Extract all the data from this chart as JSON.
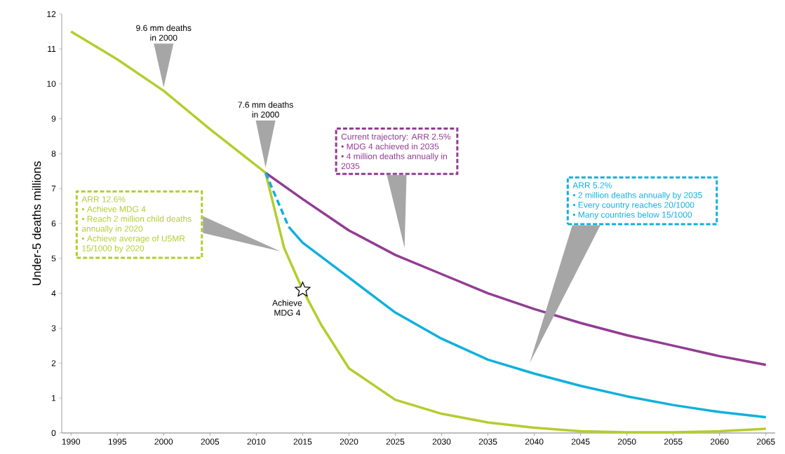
{
  "chart_data": {
    "type": "line",
    "ylabel": "Under-5 deaths millions",
    "xlim": [
      1989,
      2066
    ],
    "ylim": [
      0,
      12
    ],
    "xticks": [
      1990,
      1995,
      2000,
      2005,
      2010,
      2015,
      2020,
      2025,
      2030,
      2035,
      2040,
      2045,
      2050,
      2055,
      2060,
      2065
    ],
    "yticks": [
      0,
      1,
      2,
      3,
      4,
      5,
      6,
      7,
      8,
      9,
      10,
      11,
      12
    ],
    "grid": false,
    "series": [
      {
        "color": "#b5cc2e",
        "line_style": "solid",
        "x": [
          1990,
          1995,
          2000,
          2005,
          2011,
          2013,
          2015,
          2017,
          2020,
          2025,
          2030,
          2035,
          2040,
          2045,
          2050,
          2055,
          2060,
          2065
        ],
        "values": [
          11.5,
          10.7,
          9.8,
          8.7,
          7.45,
          5.3,
          4.1,
          3.1,
          1.85,
          0.95,
          0.55,
          0.3,
          0.15,
          0.05,
          0.02,
          0.02,
          0.05,
          0.12
        ]
      },
      {
        "color": "#923c92",
        "line_style": "solid",
        "x": [
          2011,
          2015,
          2020,
          2025,
          2030,
          2035,
          2040,
          2045,
          2050,
          2055,
          2060,
          2065
        ],
        "values": [
          7.45,
          6.7,
          5.8,
          5.1,
          4.55,
          4.0,
          3.55,
          3.15,
          2.8,
          2.5,
          2.2,
          1.95
        ]
      },
      {
        "color": "#0fb0dd",
        "line_style": "dashed",
        "x": [
          2011,
          2013.5
        ],
        "values": [
          7.45,
          5.9
        ]
      },
      {
        "color": "#0fb0dd",
        "line_style": "solid",
        "x": [
          2013.5,
          2015,
          2020,
          2025,
          2030,
          2035,
          2040,
          2045,
          2050,
          2055,
          2060,
          2065
        ],
        "values": [
          5.9,
          5.45,
          4.45,
          3.45,
          2.7,
          2.1,
          1.7,
          1.35,
          1.05,
          0.8,
          0.6,
          0.45
        ]
      },
      {
        "type": "scatter",
        "marker": "star",
        "color": "#000000",
        "x": [
          2015
        ],
        "values": [
          4.1
        ]
      }
    ],
    "annotations": [
      {
        "text": "9.6 mm deaths in 2000",
        "x": 2000,
        "y": 9.8
      },
      {
        "text": "7.6 mm deaths in 2000",
        "x": 2011,
        "y": 7.45
      },
      {
        "text": "Achieve MDG 4",
        "x": 2015,
        "y": 4.1
      },
      "ARR 12.6%",
      "• Achieve MDG 4",
      "• Reach 2 million child deaths annually in 2020",
      "• Achieve average of U5MR 15/1000 by 2020",
      "Current trajectory:  ARR 2.5%",
      "• MDG 4 achieved in 2035",
      "• 4 million deaths annually in 2035",
      "ARR 5.2%",
      "• 2 million deaths annually by 2035",
      "• Every country reaches 20/1000",
      "• Many countries below 15/1000"
    ]
  }
}
